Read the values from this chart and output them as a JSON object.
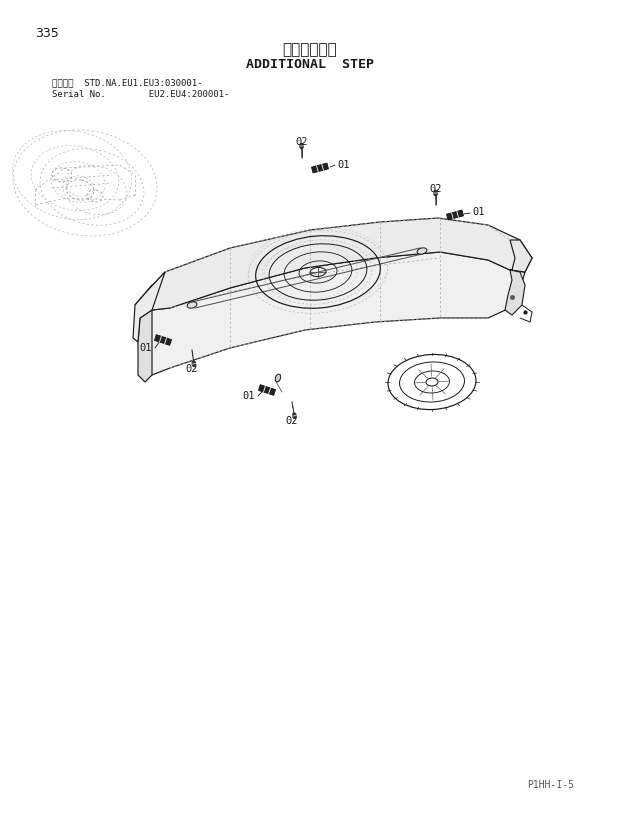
{
  "page_number": "335",
  "title_japanese": "追加ステップ",
  "title_english": "ADDITIONAL  STEP",
  "serial_line1": "適用号機  STD.NA.EU1.EU3:030001-",
  "serial_line2": "Serial No.        EU2.EU4:200001-",
  "footer": "P1HH-I-5",
  "bg_color": "#ffffff",
  "lc": "#1a1a1a",
  "dc": "#999999"
}
